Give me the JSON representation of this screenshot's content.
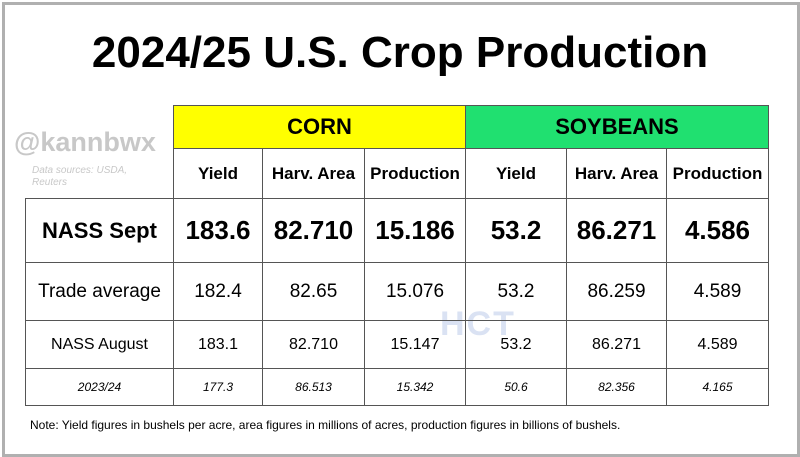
{
  "title": "2024/25 U.S. Crop Production",
  "watermark": "@kannbwx",
  "sources": "Data sources: USDA, Reuters",
  "logo": "HCT",
  "table": {
    "groups": [
      "CORN",
      "SOYBEANS"
    ],
    "columns": [
      "Yield",
      "Harv. Area",
      "Production",
      "Yield",
      "Harv. Area",
      "Production"
    ],
    "rows": [
      [
        "NASS Sept",
        "183.6",
        "82.710",
        "15.186",
        "53.2",
        "86.271",
        "4.586"
      ],
      [
        "Trade average",
        "182.4",
        "82.65",
        "15.076",
        "53.2",
        "86.259",
        "4.589"
      ],
      [
        "NASS August",
        "183.1",
        "82.710",
        "15.147",
        "53.2",
        "86.271",
        "4.589"
      ],
      [
        "2023/24",
        "177.3",
        "86.513",
        "15.342",
        "50.6",
        "82.356",
        "4.165"
      ]
    ]
  },
  "note": "Note: Yield figures in bushels per acre, area figures in millions of acres, production figures in billions of bushels."
}
